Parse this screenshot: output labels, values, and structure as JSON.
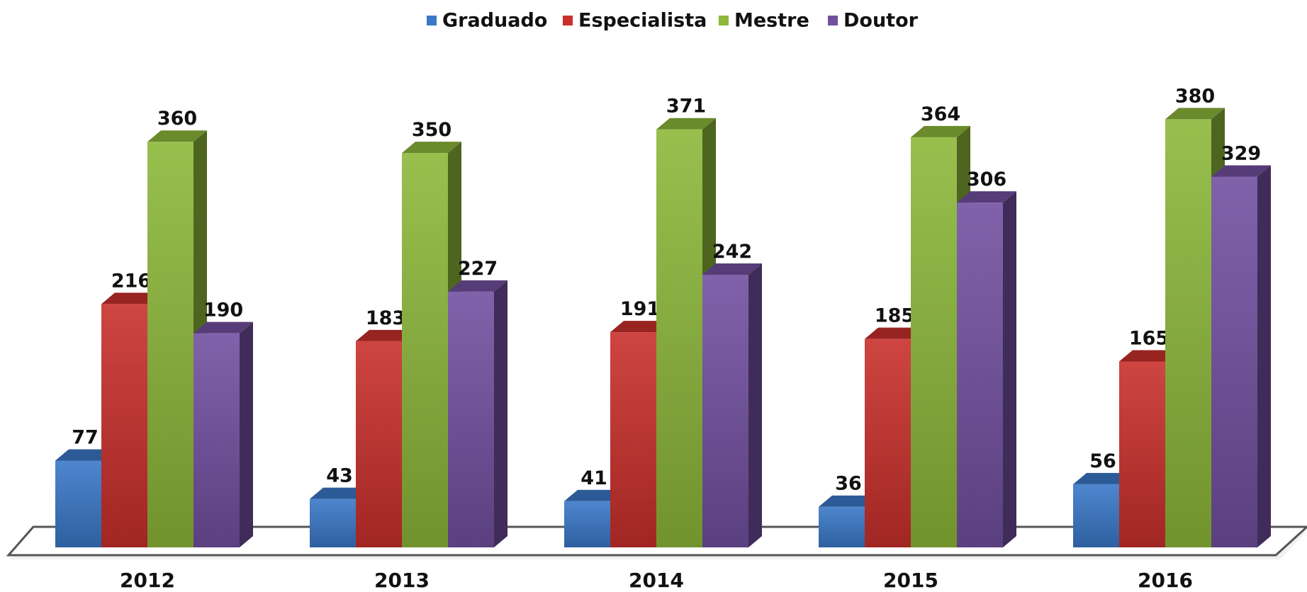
{
  "chart_data": {
    "type": "bar3d",
    "categories": [
      "2012",
      "2013",
      "2014",
      "2015",
      "2016"
    ],
    "series": [
      {
        "name": "Graduado",
        "color": "#3a78c8",
        "values": [
          77,
          43,
          41,
          36,
          56
        ]
      },
      {
        "name": "Especialista",
        "color": "#c9302c",
        "values": [
          216,
          183,
          191,
          185,
          165
        ]
      },
      {
        "name": "Mestre",
        "color": "#8db83a",
        "values": [
          360,
          350,
          371,
          364,
          380
        ]
      },
      {
        "name": "Doutor",
        "color": "#7250a0",
        "values": [
          190,
          227,
          242,
          306,
          329
        ]
      }
    ],
    "legend": "top"
  }
}
